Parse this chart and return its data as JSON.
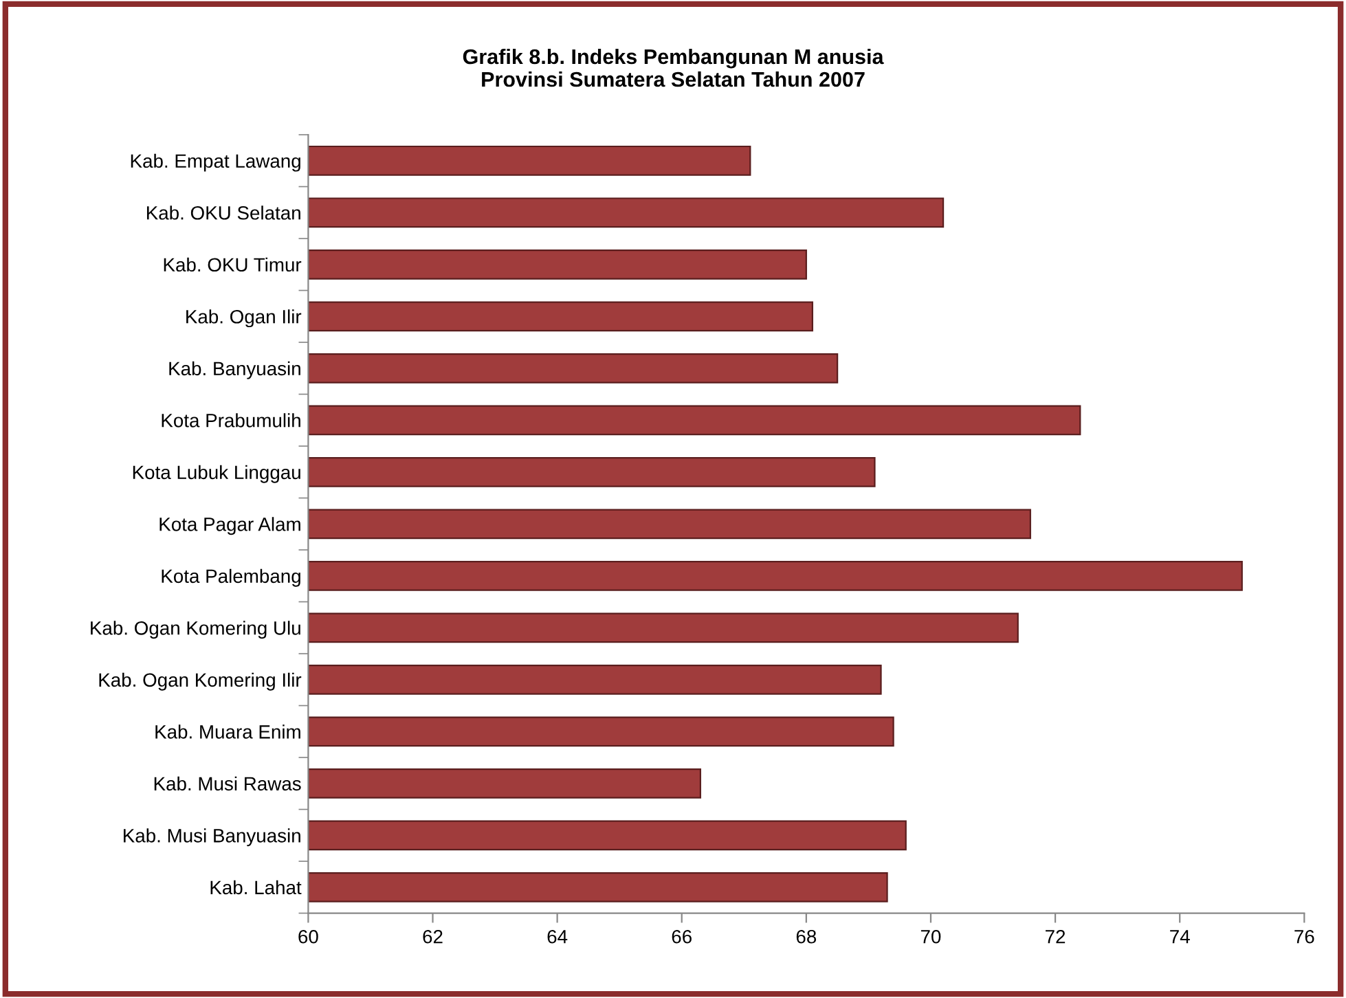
{
  "chart_data": {
    "type": "bar",
    "orientation": "horizontal",
    "title": "Grafik 8.b. Indeks Pembangunan M anusia\nProvinsi Sumatera Selatan Tahun 2007",
    "categories": [
      "Kab. Empat Lawang",
      "Kab. OKU Selatan",
      "Kab. OKU Timur",
      "Kab. Ogan Ilir",
      "Kab. Banyuasin",
      "Kota Prabumulih",
      "Kota Lubuk Linggau",
      "Kota Pagar Alam",
      "Kota Palembang",
      "Kab. Ogan Komering Ulu",
      "Kab. Ogan Komering Ilir",
      "Kab. Muara Enim",
      "Kab. Musi Rawas",
      "Kab. Musi Banyuasin",
      "Kab. Lahat"
    ],
    "values": [
      67.1,
      70.2,
      68.0,
      68.1,
      68.5,
      72.4,
      69.1,
      71.6,
      75.0,
      71.4,
      69.2,
      69.4,
      66.3,
      69.6,
      69.3
    ],
    "color": "#a03c3c",
    "xlim": [
      60,
      76
    ],
    "xticks": [
      60,
      62,
      64,
      66,
      68,
      70,
      72,
      74,
      76
    ],
    "grid": false,
    "legend": false
  }
}
